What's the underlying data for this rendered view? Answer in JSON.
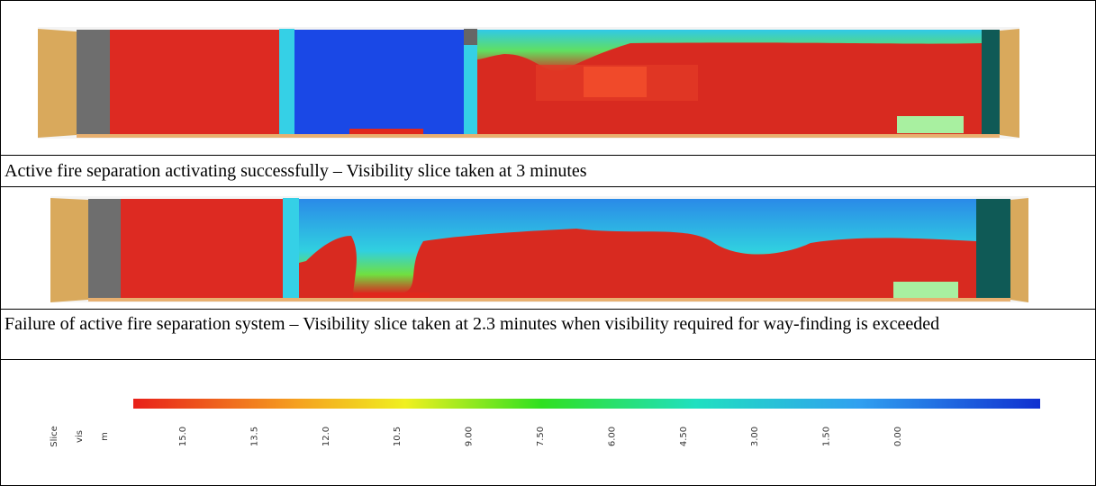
{
  "captions": [
    "Active fire separation activating successfully – Visibility slice taken at 3 minutes",
    "Failure of active fire separation system – Visibility slice taken at 2.3 minutes when visibility required for way-finding is exceeded"
  ],
  "legend": {
    "labels": [
      "Slice",
      "vis",
      "m"
    ],
    "ticks": [
      "15.0",
      "13.5",
      "12.0",
      "10.5",
      "9.00",
      "7.50",
      "6.00",
      "4.50",
      "3.00",
      "1.50",
      "0.00"
    ]
  }
}
